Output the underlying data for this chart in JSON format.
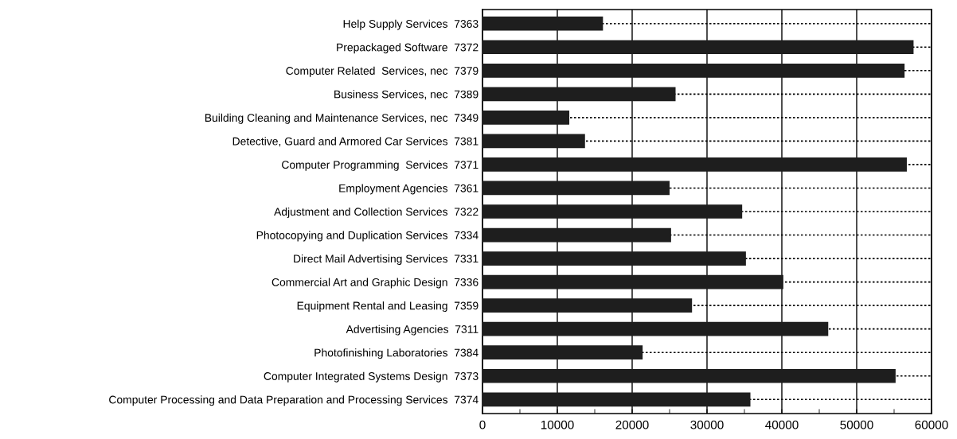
{
  "chart_data": {
    "type": "bar",
    "orientation": "horizontal",
    "categories": [
      "Help Supply Services  7363",
      "Prepackaged Software  7372",
      "Computer Related  Services, nec  7379",
      "Business Services, nec  7389",
      "Building Cleaning and Maintenance Services, nec  7349",
      "Detective, Guard and Armored Car Services  7381",
      "Computer Programming  Services  7371",
      "Employment Agencies  7361",
      "Adjustment and Collection Services  7322",
      "Photocopying and Duplication Services  7334",
      "Direct Mail Advertising Services  7331",
      "Commercial Art and Graphic Design  7336",
      "Equipment Rental and Leasing  7359",
      "Advertising Agencies  7311",
      "Photofinishing Laboratories  7384",
      "Computer Integrated Systems Design  7373",
      "Computer Processing and Data Preparation and Processing Services  7374"
    ],
    "values": [
      16100,
      57600,
      56400,
      25800,
      11600,
      13700,
      56700,
      25000,
      34700,
      25200,
      35200,
      40200,
      28000,
      46200,
      21400,
      55200,
      35800
    ],
    "color": "#1e1e1e",
    "xlim": [
      0,
      60000
    ],
    "xticks": [
      0,
      {
        "value": 5000,
        "label": null
      },
      10000,
      {
        "value": 15000,
        "label": null
      },
      20000,
      {
        "value": 25000,
        "label": null
      },
      30000,
      {
        "value": 35000,
        "label": null
      },
      40000,
      {
        "value": 45000,
        "label": null
      },
      50000,
      {
        "value": 55000,
        "label": null
      },
      60000
    ],
    "grid": true
  }
}
